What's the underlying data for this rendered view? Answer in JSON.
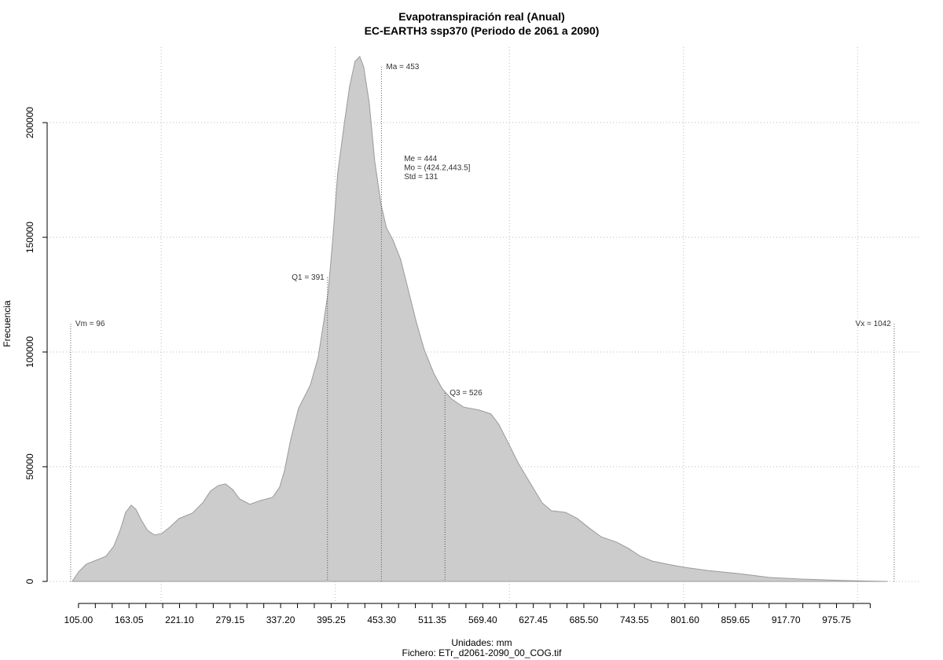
{
  "chart_data": {
    "type": "area",
    "title": "Evapotranspiración real (Anual)",
    "subtitle": "EC-EARTH3 ssp370 (Periodo de 2061 a 2090)",
    "x_label": "Unidades: mm",
    "caption": "Fichero: ETr_d2061-2090_00_COG.tif",
    "y_label": "Frecuencia",
    "color": "#cccccc",
    "line_color": "#9a9a9a",
    "grid": true,
    "xlim": [
      69,
      1071
    ],
    "ylim": [
      -9600,
      232900
    ],
    "yticks": [
      0,
      50000,
      100000,
      150000,
      200000
    ],
    "xgrid": [
      200,
      400,
      600,
      800,
      1000
    ],
    "xticks": [
      {
        "value": 105,
        "label": "105.00"
      },
      {
        "value": 163.05,
        "label": "163.05"
      },
      {
        "value": 221.1,
        "label": "221.10"
      },
      {
        "value": 279.15,
        "label": "279.15"
      },
      {
        "value": 337.2,
        "label": "337.20"
      },
      {
        "value": 395.25,
        "label": "395.25"
      },
      {
        "value": 453.3,
        "label": "453.30"
      },
      {
        "value": 511.35,
        "label": "511.35"
      },
      {
        "value": 569.4,
        "label": "569.40"
      },
      {
        "value": 627.45,
        "label": "627.45"
      },
      {
        "value": 685.5,
        "label": "685.50"
      },
      {
        "value": 743.55,
        "label": "743.55"
      },
      {
        "value": 801.6,
        "label": "801.60"
      },
      {
        "value": 859.65,
        "label": "859.65"
      },
      {
        "value": 917.7,
        "label": "917.70"
      },
      {
        "value": 975.75,
        "label": "975.75"
      }
    ],
    "xminorticks": [
      124.35,
      143.7,
      182.4,
      201.75,
      240.45,
      259.8,
      298.5,
      317.85,
      356.55,
      375.9,
      414.6,
      433.95,
      472.65,
      492,
      530.7,
      550.05,
      588.75,
      608.1,
      646.8,
      666.15,
      704.85,
      724.2,
      762.9,
      782.25,
      820.95,
      840.3,
      879,
      898.35,
      937.05,
      956.4,
      995.1,
      1014.45
    ],
    "x": [
      97.8,
      105,
      114,
      127.6,
      136.6,
      145.6,
      152.8,
      159.2,
      165.5,
      170.9,
      177.2,
      184.4,
      192.5,
      200.7,
      208.8,
      220.5,
      235.9,
      247.6,
      256.6,
      265.6,
      273.8,
      281.9,
      290,
      301.8,
      314.4,
      328,
      336,
      341.5,
      348.7,
      357.7,
      371.3,
      380.3,
      386.6,
      392,
      397.4,
      402.8,
      410,
      416.4,
      422.7,
      428.1,
      432.6,
      438.9,
      445.3,
      452.5,
      458.8,
      466,
      475,
      484.1,
      493.1,
      502.2,
      513,
      522.9,
      533.7,
      547.2,
      565.3,
      578.8,
      587.8,
      596.9,
      610.4,
      624,
      637.5,
      648.3,
      664.6,
      678.1,
      691.6,
      705.2,
      723.2,
      736.8,
      750.3,
      763.9,
      781.9,
      800,
      827,
      863,
      899.2,
      935.3,
      989.5,
      1034.6
    ],
    "values": [
      0,
      4110,
      7535,
      9590,
      10960,
      15400,
      22260,
      30140,
      33220,
      31500,
      26700,
      22260,
      20200,
      20900,
      23300,
      27400,
      29800,
      34250,
      39400,
      41800,
      42500,
      40100,
      36000,
      33600,
      35300,
      36650,
      41100,
      48000,
      61700,
      75400,
      85600,
      97600,
      113000,
      126700,
      150700,
      178100,
      198700,
      215800,
      226700,
      228800,
      224300,
      208900,
      183200,
      164400,
      154100,
      149000,
      140400,
      126700,
      113000,
      101000,
      90800,
      83900,
      79500,
      76000,
      74700,
      73000,
      68500,
      61700,
      51400,
      42800,
      34300,
      30800,
      30100,
      27400,
      23300,
      19500,
      17100,
      14400,
      11000,
      8900,
      7500,
      6200,
      4800,
      3400,
      1700,
      1000,
      340,
      0
    ],
    "annotations": [
      {
        "label": "Vm = 96",
        "x": 96,
        "y": 112300,
        "side": "right"
      },
      {
        "label": "Q1 = 391",
        "x": 391,
        "y": 132500,
        "side": "left"
      },
      {
        "label": "Ma = 453",
        "x": 453,
        "y": 224300,
        "side": "right"
      },
      {
        "label": "Q3 = 526",
        "x": 526,
        "y": 82200,
        "side": "right"
      },
      {
        "label": "Vx = 1042",
        "x": 1042,
        "y": 112300,
        "side": "left"
      }
    ],
    "stats": {
      "lines": [
        "Me = 444",
        "Mo = (424.2,443.5]",
        "Std = 131"
      ],
      "x": 479,
      "y": 184300
    }
  }
}
